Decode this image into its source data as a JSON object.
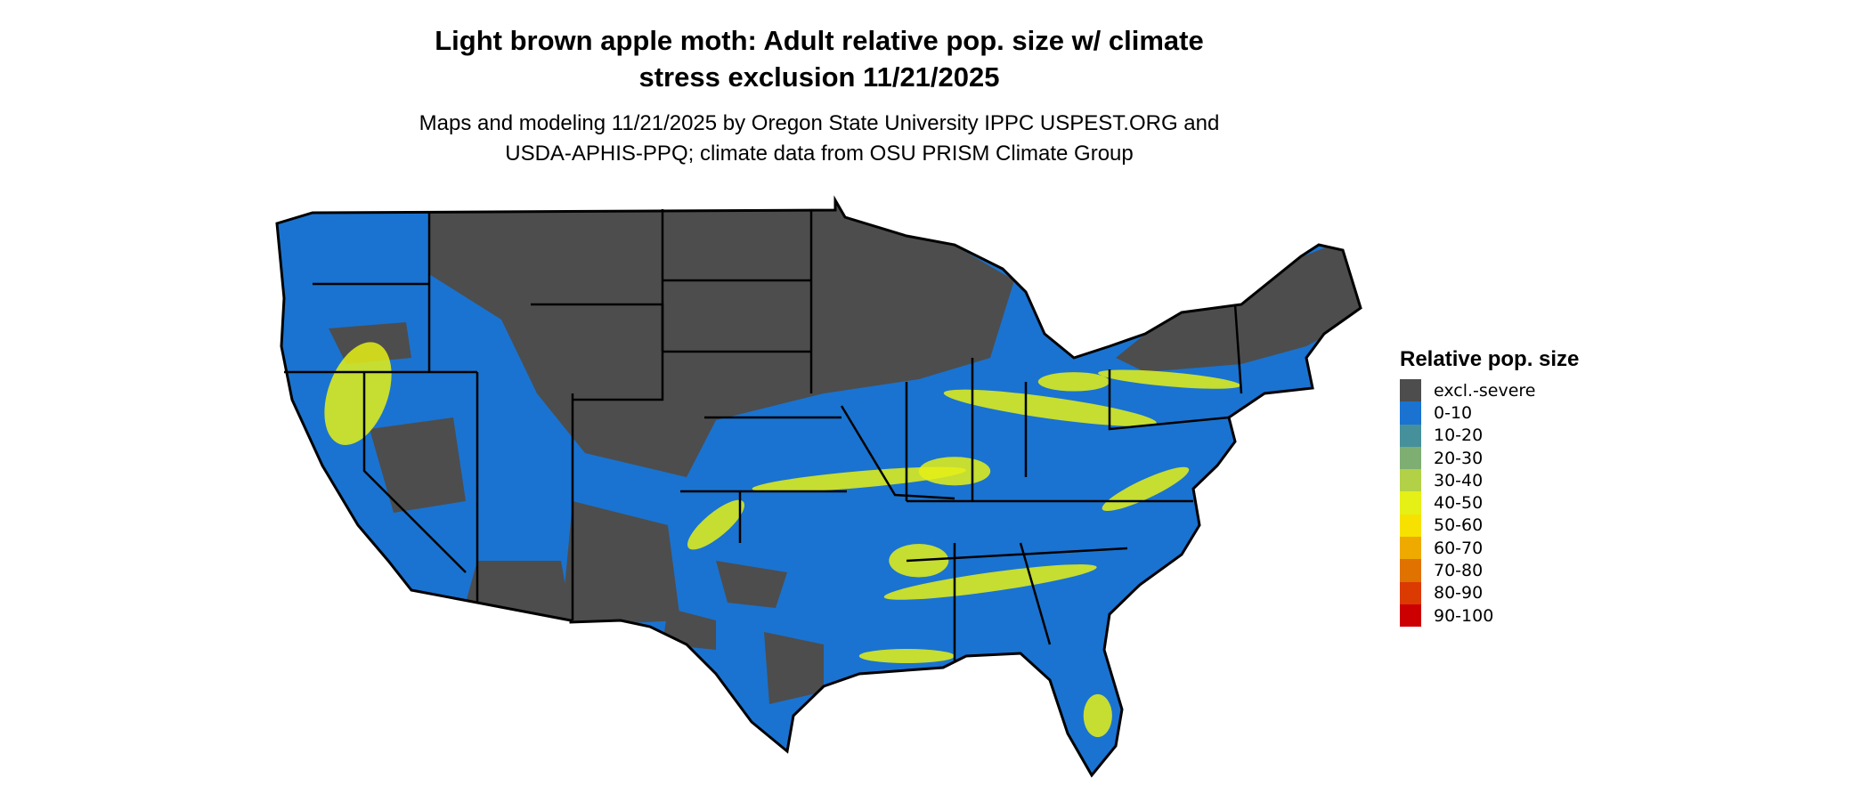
{
  "title_line1": "Light brown apple moth: Adult relative pop. size w/ climate",
  "title_line2": "stress exclusion 11/21/2025",
  "subtitle_line1": "Maps and modeling 11/21/2025 by Oregon State University IPPC USPEST.ORG and",
  "subtitle_line2": "USDA-APHIS-PPQ; climate data from OSU PRISM Climate Group",
  "chart_data": {
    "type": "heatmap",
    "region": "Contiguous United States",
    "legend": {
      "title": "Relative pop. size",
      "placement": "right",
      "entries": [
        {
          "label": "excl.-severe",
          "color": "#4d4d4d"
        },
        {
          "label": "0-10",
          "color": "#1a73d0"
        },
        {
          "label": "10-20",
          "color": "#46909c"
        },
        {
          "label": "20-30",
          "color": "#7eae72"
        },
        {
          "label": "30-40",
          "color": "#b2d147"
        },
        {
          "label": "40-50",
          "color": "#e5f016"
        },
        {
          "label": "50-60",
          "color": "#f7e100"
        },
        {
          "label": "60-70",
          "color": "#efaa00"
        },
        {
          "label": "70-80",
          "color": "#e07200"
        },
        {
          "label": "80-90",
          "color": "#db3a00"
        },
        {
          "label": "90-100",
          "color": "#cc0000"
        }
      ]
    }
  }
}
